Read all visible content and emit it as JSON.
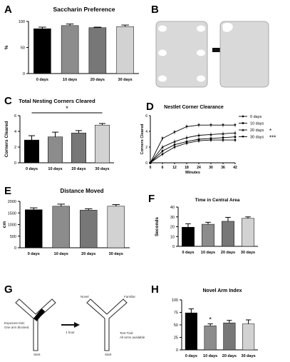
{
  "colors": {
    "black": "#000000",
    "dark": "#777777",
    "gray": "#8c8c8c",
    "light": "#d2d2d2",
    "arrow": "#111111",
    "rect": "#d9d9d9"
  },
  "panels": {
    "A": {
      "letter": "A"
    },
    "B": {
      "letter": "B"
    },
    "C": {
      "letter": "C",
      "sig": "*"
    },
    "D": {
      "letter": "D"
    },
    "E": {
      "letter": "E"
    },
    "F": {
      "letter": "F"
    },
    "G": {
      "letter": "G",
      "exposure": [
        "Exposure trial:",
        "One arm blocked"
      ],
      "start1": "Start",
      "novel": "Novel",
      "familiar": "Familiar",
      "delay": "1 hour",
      "test": [
        "Test Trial:",
        "All arms available"
      ],
      "start2": "Start"
    },
    "H": {
      "letter": "H",
      "sig": "*"
    }
  },
  "chart_data": [
    {
      "id": "A",
      "type": "bar",
      "title": "Saccharin Preference",
      "ylabel": "%",
      "categories": [
        "0 days",
        "10 days",
        "20 days",
        "30 days"
      ],
      "values": [
        86,
        92,
        88,
        90
      ],
      "errors": [
        3,
        3,
        1,
        3
      ],
      "ylim": [
        0,
        100
      ],
      "yticks": [
        0,
        50,
        100
      ]
    },
    {
      "id": "C",
      "type": "bar",
      "title": "Total Nesting Corners Cleared",
      "ylabel": "Corners Cleared",
      "categories": [
        "0 days",
        "10 days",
        "20 days",
        "30 days"
      ],
      "values": [
        2.9,
        3.3,
        3.8,
        4.8
      ],
      "errors": [
        0.55,
        0.6,
        0.3,
        0.2
      ],
      "ylim": [
        0,
        6
      ],
      "yticks": [
        0,
        2,
        4,
        6
      ],
      "significance": {
        "from": "0 days",
        "to": "30 days",
        "label": "*"
      }
    },
    {
      "id": "D",
      "type": "line",
      "title": "Nestlet Corner Clearance",
      "xlabel": "Minutes",
      "ylabel": "Corners Cleared",
      "x": [
        0,
        6,
        12,
        18,
        24,
        30,
        36,
        42
      ],
      "xlim": [
        0,
        42
      ],
      "ylim": [
        0,
        6
      ],
      "yticks": [
        0,
        2,
        4,
        6
      ],
      "series": [
        {
          "name": "0 days",
          "marker": "circle",
          "values": [
            0,
            1.1,
            2.0,
            2.5,
            2.8,
            2.9,
            2.9,
            2.9
          ]
        },
        {
          "name": "10 days",
          "marker": "square",
          "values": [
            0,
            1.5,
            2.3,
            2.7,
            3.0,
            3.1,
            3.2,
            3.3
          ]
        },
        {
          "name": "20 days",
          "marker": "triangle-up",
          "mark": "*",
          "values": [
            0,
            2.0,
            2.7,
            3.2,
            3.5,
            3.6,
            3.7,
            3.8
          ]
        },
        {
          "name": "30 days",
          "marker": "triangle-down",
          "mark": "***",
          "values": [
            0,
            3.1,
            3.9,
            4.6,
            4.8,
            4.8,
            4.8,
            4.8
          ]
        }
      ]
    },
    {
      "id": "E",
      "type": "bar",
      "title": "Distance Moved",
      "ylabel": "cm",
      "categories": [
        "0 days",
        "10 days",
        "20 days",
        "30 days"
      ],
      "values": [
        1640,
        1790,
        1620,
        1790
      ],
      "errors": [
        80,
        90,
        60,
        70
      ],
      "ylim": [
        0,
        2000
      ],
      "yticks": [
        0,
        500,
        1000,
        1500,
        2000
      ]
    },
    {
      "id": "F",
      "type": "bar",
      "title": "Time in Central Area",
      "ylabel": "Seconds",
      "categories": [
        "0 days",
        "10 days",
        "20 days",
        "30 days"
      ],
      "values": [
        19.5,
        22.5,
        25.5,
        28.5
      ],
      "errors": [
        3.5,
        2,
        4,
        1.5
      ],
      "ylim": [
        0,
        40
      ],
      "yticks": [
        0,
        10,
        20,
        30,
        40
      ]
    },
    {
      "id": "H",
      "type": "bar",
      "title": "Novel Arm Index",
      "ylabel": "",
      "categories": [
        "0 days",
        "10 days",
        "20 days",
        "30 days"
      ],
      "values": [
        74,
        48,
        54,
        52
      ],
      "errors": [
        8,
        4,
        5,
        8
      ],
      "ylim": [
        0,
        100
      ],
      "yticks": [
        0,
        25,
        50,
        75,
        100
      ],
      "significance": {
        "over": "10 days",
        "label": "*"
      }
    }
  ]
}
